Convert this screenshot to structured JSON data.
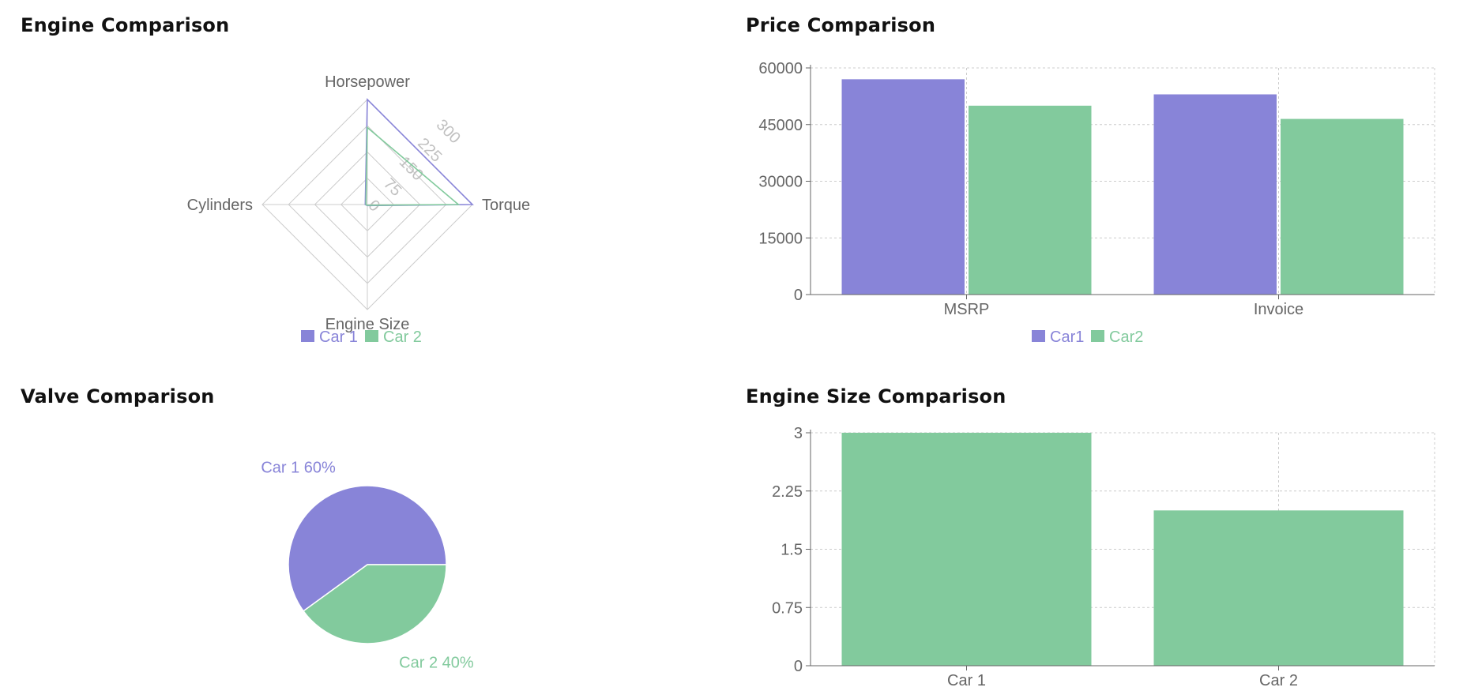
{
  "colors": {
    "car1": "#8884d8",
    "car2": "#82ca9d",
    "grid": "#cccccc",
    "axis": "#666666"
  },
  "charts": {
    "engine": {
      "title": "Engine Comparison"
    },
    "price": {
      "title": "Price Comparison"
    },
    "valve": {
      "title": "Valve Comparison"
    },
    "engine_size": {
      "title": "Engine Size Comparison"
    }
  },
  "chart_data": [
    {
      "id": "engine",
      "type": "radar",
      "title": "Engine Comparison",
      "axes": [
        "Horsepower",
        "Torque",
        "Engine Size",
        "Cylinders"
      ],
      "radial_ticks": [
        "0",
        "75",
        "150",
        "225",
        "300"
      ],
      "domain": [
        0,
        300
      ],
      "series": [
        {
          "name": "Car 1",
          "values": [
            300,
            300,
            3,
            6
          ]
        },
        {
          "name": "Car 2",
          "values": [
            220,
            260,
            2,
            4
          ]
        }
      ],
      "legend": "bottom"
    },
    {
      "id": "price",
      "type": "bar",
      "title": "Price Comparison",
      "categories": [
        "MSRP",
        "Invoice"
      ],
      "series": [
        {
          "name": "Car1",
          "values": [
            57000,
            53000
          ]
        },
        {
          "name": "Car2",
          "values": [
            50000,
            46500
          ]
        }
      ],
      "yticks": [
        "0",
        "15000",
        "30000",
        "45000",
        "60000"
      ],
      "ylim": [
        0,
        60000
      ],
      "grid": true,
      "legend": "bottom"
    },
    {
      "id": "valve",
      "type": "pie",
      "title": "Valve Comparison",
      "slices": [
        {
          "name": "Car 1",
          "value": 60,
          "label": "Car 1 60%"
        },
        {
          "name": "Car 2",
          "value": 40,
          "label": "Car 2 40%"
        }
      ]
    },
    {
      "id": "engine_size",
      "type": "bar",
      "title": "Engine Size Comparison",
      "categories": [
        "Car 1",
        "Car 2"
      ],
      "values": [
        3,
        2
      ],
      "yticks": [
        "0",
        "0.75",
        "1.5",
        "2.25",
        "3"
      ],
      "ylim": [
        0,
        3
      ],
      "grid": true
    }
  ]
}
